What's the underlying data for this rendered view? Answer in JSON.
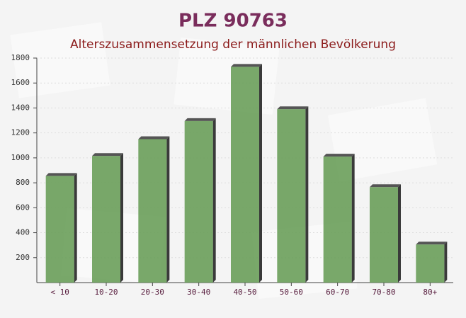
{
  "chart_data": {
    "type": "bar",
    "title": "PLZ 90763",
    "subtitle": "Alterszusammensetzung der männlichen Bevölkerung",
    "categories": [
      "< 10",
      "10-20",
      "20-30",
      "30-40",
      "40-50",
      "50-60",
      "60-70",
      "70-80",
      "80+"
    ],
    "values": [
      855,
      1015,
      1150,
      1295,
      1730,
      1390,
      1010,
      765,
      305
    ],
    "color": "#6a9e5a",
    "ylim": [
      0,
      1800
    ],
    "yticks": [
      200,
      400,
      600,
      800,
      1000,
      1200,
      1400,
      1600,
      1800
    ],
    "grid": true
  }
}
